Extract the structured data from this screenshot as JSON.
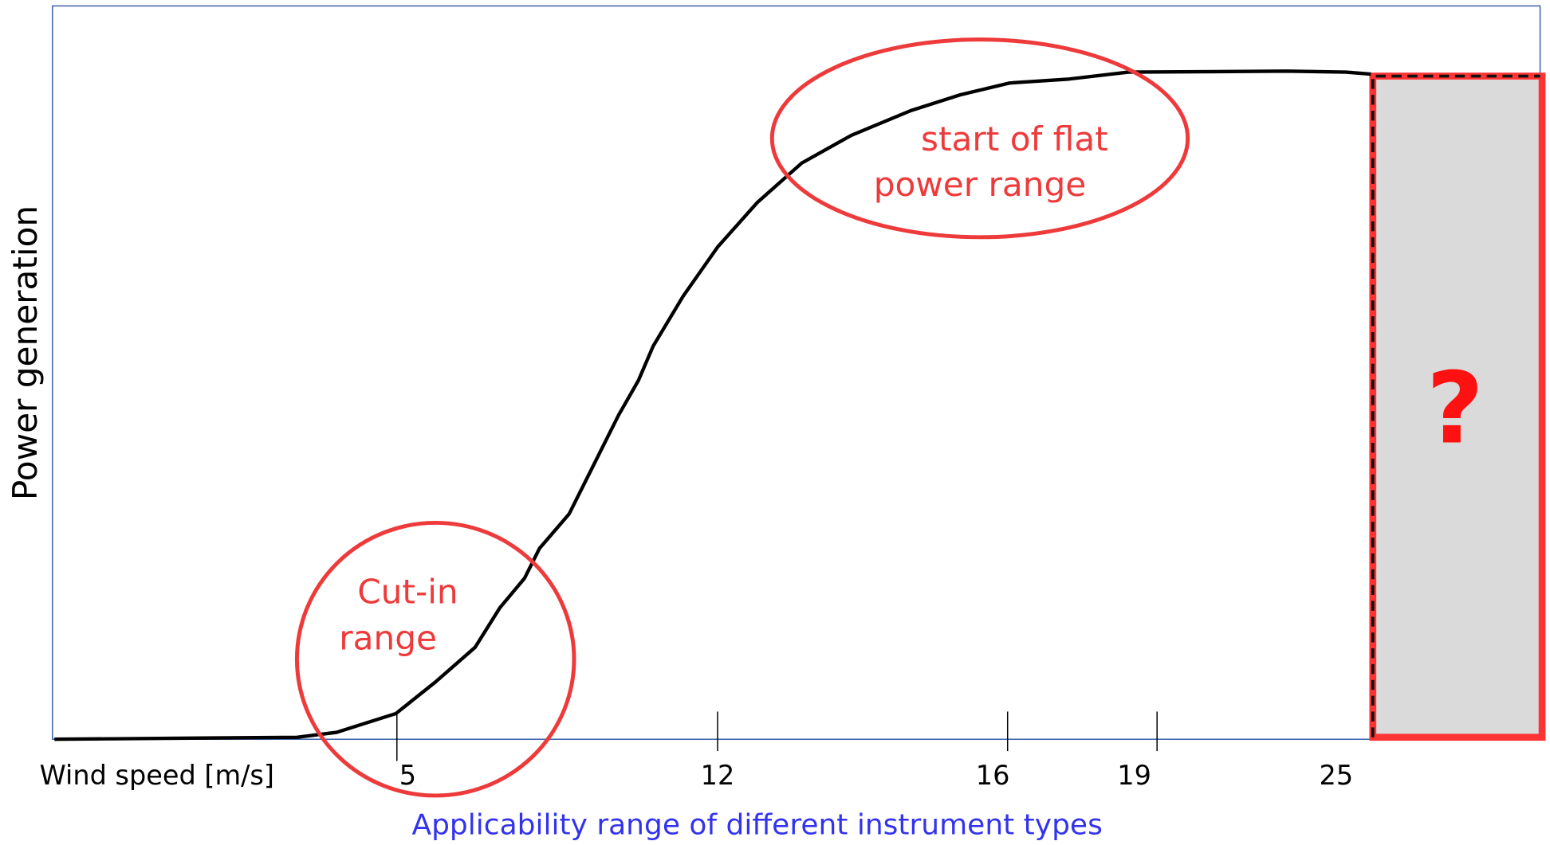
{
  "y_label": "Power generation",
  "x_label": "Wind speed [m/s]",
  "ticks": [
    "5",
    "12",
    "16",
    "19",
    "25"
  ],
  "subtitle": "Applicability range of different instrument types",
  "annotations": {
    "cut_in": [
      "Cut-in",
      "range"
    ],
    "flat": [
      "start of flat",
      "power range"
    ],
    "unknown": "?"
  }
}
